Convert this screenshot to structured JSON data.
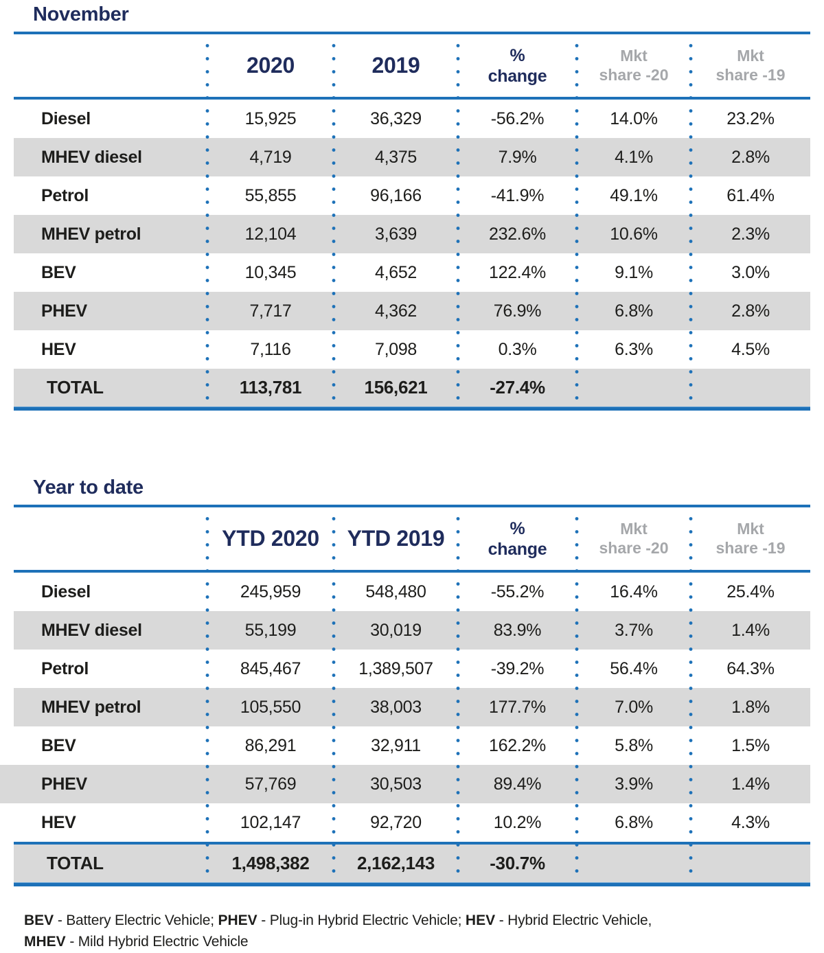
{
  "colors": {
    "navy": "#1F2C5C",
    "blue_rule": "#1D71B8",
    "shaded_row_bg": "#D9D9D9",
    "gray_header_text": "#A5A7AA",
    "body_text": "#1D1D1B"
  },
  "tables": [
    {
      "title": "November",
      "header": {
        "col1": "2020",
        "col2": "2019",
        "col3_line1": "%",
        "col3_line2": "change",
        "col4_line1": "Mkt",
        "col4_line2": "share -20",
        "col5_line1": "Mkt",
        "col5_line2": "share -19"
      },
      "rows": [
        {
          "label": "Diesel",
          "values": [
            "15,925",
            "36,329",
            "-56.2%",
            "14.0%",
            "23.2%"
          ]
        },
        {
          "label": "MHEV diesel",
          "values": [
            "4,719",
            "4,375",
            "7.9%",
            "4.1%",
            "2.8%"
          ]
        },
        {
          "label": "Petrol",
          "values": [
            "55,855",
            "96,166",
            "-41.9%",
            "49.1%",
            "61.4%"
          ]
        },
        {
          "label": "MHEV petrol",
          "values": [
            "12,104",
            "3,639",
            "232.6%",
            "10.6%",
            "2.3%"
          ]
        },
        {
          "label": "BEV",
          "values": [
            "10,345",
            "4,652",
            "122.4%",
            "9.1%",
            "3.0%"
          ]
        },
        {
          "label": "PHEV",
          "values": [
            "7,717",
            "4,362",
            "76.9%",
            "6.8%",
            "2.8%"
          ]
        },
        {
          "label": "HEV",
          "values": [
            "7,116",
            "7,098",
            "0.3%",
            "6.3%",
            "4.5%"
          ]
        }
      ],
      "total": {
        "label": "TOTAL",
        "values": [
          "113,781",
          "156,621",
          "-27.4%",
          "",
          ""
        ]
      }
    },
    {
      "title": "Year to date",
      "header": {
        "col1": "YTD 2020",
        "col2": "YTD 2019",
        "col3_line1": "%",
        "col3_line2": "change",
        "col4_line1": "Mkt",
        "col4_line2": "share -20",
        "col5_line1": "Mkt",
        "col5_line2": "share -19"
      },
      "rows": [
        {
          "label": "Diesel",
          "values": [
            "245,959",
            "548,480",
            "-55.2%",
            "16.4%",
            "25.4%"
          ]
        },
        {
          "label": "MHEV diesel",
          "values": [
            "55,199",
            "30,019",
            "83.9%",
            "3.7%",
            "1.4%"
          ]
        },
        {
          "label": "Petrol",
          "values": [
            "845,467",
            "1,389,507",
            "-39.2%",
            "56.4%",
            "64.3%"
          ]
        },
        {
          "label": "MHEV petrol",
          "values": [
            "105,550",
            "38,003",
            "177.7%",
            "7.0%",
            "1.8%"
          ]
        },
        {
          "label": "BEV",
          "values": [
            "86,291",
            "32,911",
            "162.2%",
            "5.8%",
            "1.5%"
          ]
        },
        {
          "label": "PHEV",
          "values": [
            "57,769",
            "30,503",
            "89.4%",
            "3.9%",
            "1.4%"
          ],
          "bleed_left": true
        },
        {
          "label": "HEV",
          "values": [
            "102,147",
            "92,720",
            "10.2%",
            "6.8%",
            "4.3%"
          ]
        }
      ],
      "total": {
        "label": "TOTAL",
        "values": [
          "1,498,382",
          "2,162,143",
          "-30.7%",
          "",
          ""
        ]
      }
    }
  ],
  "footnote": {
    "segments": [
      {
        "text": "BEV",
        "bold": true
      },
      {
        "text": " - Battery Electric Vehicle; ",
        "bold": false
      },
      {
        "text": "PHEV",
        "bold": true
      },
      {
        "text": " - Plug-in Hybrid Electric Vehicle; ",
        "bold": false
      },
      {
        "text": "HEV",
        "bold": true
      },
      {
        "text": " - Hybrid Electric Vehicle,",
        "bold": false
      },
      {
        "br": true
      },
      {
        "text": "MHEV",
        "bold": true
      },
      {
        "text": " - Mild Hybrid Electric Vehicle",
        "bold": false
      }
    ]
  }
}
